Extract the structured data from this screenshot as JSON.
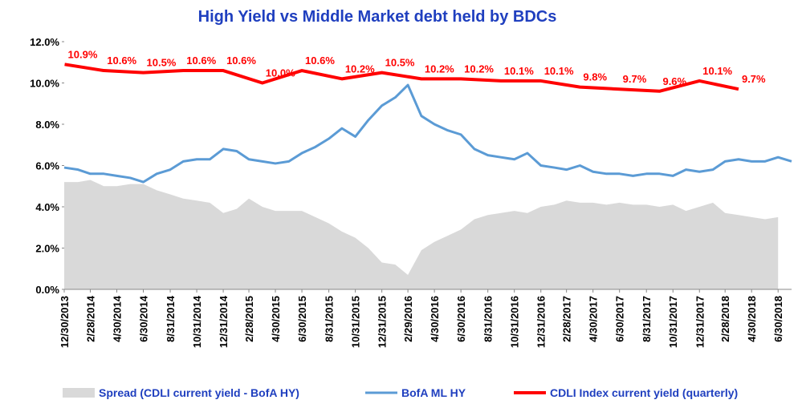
{
  "chart_data": {
    "type": "line",
    "title": "High Yield  vs  Middle Market debt held by BDCs",
    "x": [
      "12/30/2013",
      "1/31/2014",
      "2/28/2014",
      "3/31/2014",
      "4/30/2014",
      "5/31/2014",
      "6/30/2014",
      "7/31/2014",
      "8/31/2014",
      "9/30/2014",
      "10/31/2014",
      "11/30/2014",
      "12/31/2014",
      "1/31/2015",
      "2/28/2015",
      "3/31/2015",
      "4/30/2015",
      "5/31/2015",
      "6/30/2015",
      "7/31/2015",
      "8/31/2015",
      "9/30/2015",
      "10/31/2015",
      "11/30/2015",
      "12/31/2015",
      "1/31/2016",
      "2/29/2016",
      "3/31/2016",
      "4/30/2016",
      "5/31/2016",
      "6/30/2016",
      "7/31/2016",
      "8/31/2016",
      "9/30/2016",
      "10/31/2016",
      "11/30/2016",
      "12/31/2016",
      "1/31/2017",
      "2/28/2017",
      "3/31/2017",
      "4/30/2017",
      "5/31/2017",
      "6/30/2017",
      "7/31/2017",
      "8/31/2017",
      "9/30/2017",
      "10/31/2017",
      "11/30/2017",
      "12/31/2017",
      "1/31/2018",
      "2/28/2018",
      "3/31/2018",
      "4/30/2018",
      "5/31/2018",
      "6/30/2018",
      "7/31/2018"
    ],
    "xlim": [
      "12/30/2013",
      "7/31/2018"
    ],
    "xticks": [
      "12/30/2013",
      "2/28/2014",
      "4/30/2014",
      "6/30/2014",
      "8/31/2014",
      "10/31/2014",
      "12/31/2014",
      "2/28/2015",
      "4/30/2015",
      "6/30/2015",
      "8/31/2015",
      "10/31/2015",
      "12/31/2015",
      "2/29/2016",
      "4/30/2016",
      "6/30/2016",
      "8/31/2016",
      "10/31/2016",
      "12/31/2016",
      "2/28/2017",
      "4/30/2017",
      "6/30/2017",
      "8/31/2017",
      "10/31/2017",
      "12/31/2017",
      "2/28/2018",
      "4/30/2018",
      "6/30/2018"
    ],
    "ylim": [
      0,
      12
    ],
    "yticks": [
      {
        "value": 0,
        "label": "0.0%"
      },
      {
        "value": 2,
        "label": "2.0%"
      },
      {
        "value": 4,
        "label": "4.0%"
      },
      {
        "value": 6,
        "label": "6.0%"
      },
      {
        "value": 8,
        "label": "8.0%"
      },
      {
        "value": 10,
        "label": "10.0%"
      },
      {
        "value": 12,
        "label": "12.0%"
      }
    ],
    "series": [
      {
        "name": "Spread (CDLI current yield - BofA HY)",
        "type": "area",
        "color": "#d9d9d9",
        "values": [
          5.2,
          5.2,
          5.3,
          5.0,
          5.0,
          5.1,
          5.1,
          4.8,
          4.6,
          4.4,
          4.3,
          4.2,
          3.7,
          3.9,
          4.4,
          4.0,
          3.8,
          3.8,
          3.8,
          3.5,
          3.2,
          2.8,
          2.5,
          2.0,
          1.3,
          1.2,
          0.7,
          1.9,
          2.3,
          2.6,
          2.9,
          3.4,
          3.6,
          3.7,
          3.8,
          3.7,
          4.0,
          4.1,
          4.3,
          4.2,
          4.2,
          4.1,
          4.2,
          4.1,
          4.1,
          4.0,
          4.1,
          3.8,
          4.0,
          4.2,
          3.7,
          3.6,
          3.5,
          3.4,
          3.5,
          null
        ]
      },
      {
        "name": "BofA ML HY",
        "type": "line",
        "color": "#5b9bd5",
        "values": [
          5.9,
          5.8,
          5.6,
          5.6,
          5.5,
          5.4,
          5.2,
          5.6,
          5.8,
          6.2,
          6.3,
          6.3,
          6.8,
          6.7,
          6.3,
          6.2,
          6.1,
          6.2,
          6.6,
          6.9,
          7.3,
          7.8,
          7.4,
          8.2,
          8.9,
          9.3,
          9.9,
          8.4,
          8.0,
          7.7,
          7.5,
          6.8,
          6.5,
          6.4,
          6.3,
          6.6,
          6.0,
          5.9,
          5.8,
          6.0,
          5.7,
          5.6,
          5.6,
          5.5,
          5.6,
          5.6,
          5.5,
          5.8,
          5.7,
          5.8,
          6.2,
          6.3,
          6.2,
          6.2,
          6.4,
          6.2
        ]
      },
      {
        "name": "CDLI Index current yield (quarterly)",
        "type": "line",
        "color": "#ff0000",
        "x": [
          "12/31/2013",
          "3/31/2014",
          "6/30/2014",
          "9/30/2014",
          "12/31/2014",
          "3/31/2015",
          "6/30/2015",
          "9/30/2015",
          "12/31/2015",
          "3/31/2016",
          "6/30/2016",
          "9/30/2016",
          "12/31/2016",
          "3/31/2017",
          "6/30/2017",
          "9/30/2017",
          "12/31/2017",
          "3/31/2018"
        ],
        "values": [
          10.9,
          10.6,
          10.5,
          10.6,
          10.6,
          10.0,
          10.6,
          10.2,
          10.5,
          10.2,
          10.2,
          10.1,
          10.1,
          9.8,
          9.7,
          9.6,
          10.1,
          9.7
        ],
        "value_labels": [
          "10.9%",
          "10.6%",
          "10.5%",
          "10.6%",
          "10.6%",
          "10.0%",
          "10.6%",
          "10.2%",
          "10.5%",
          "10.2%",
          "10.2%",
          "10.1%",
          "10.1%",
          "9.8%",
          "9.7%",
          "9.6%",
          "10.1%",
          "9.7%"
        ]
      }
    ]
  }
}
